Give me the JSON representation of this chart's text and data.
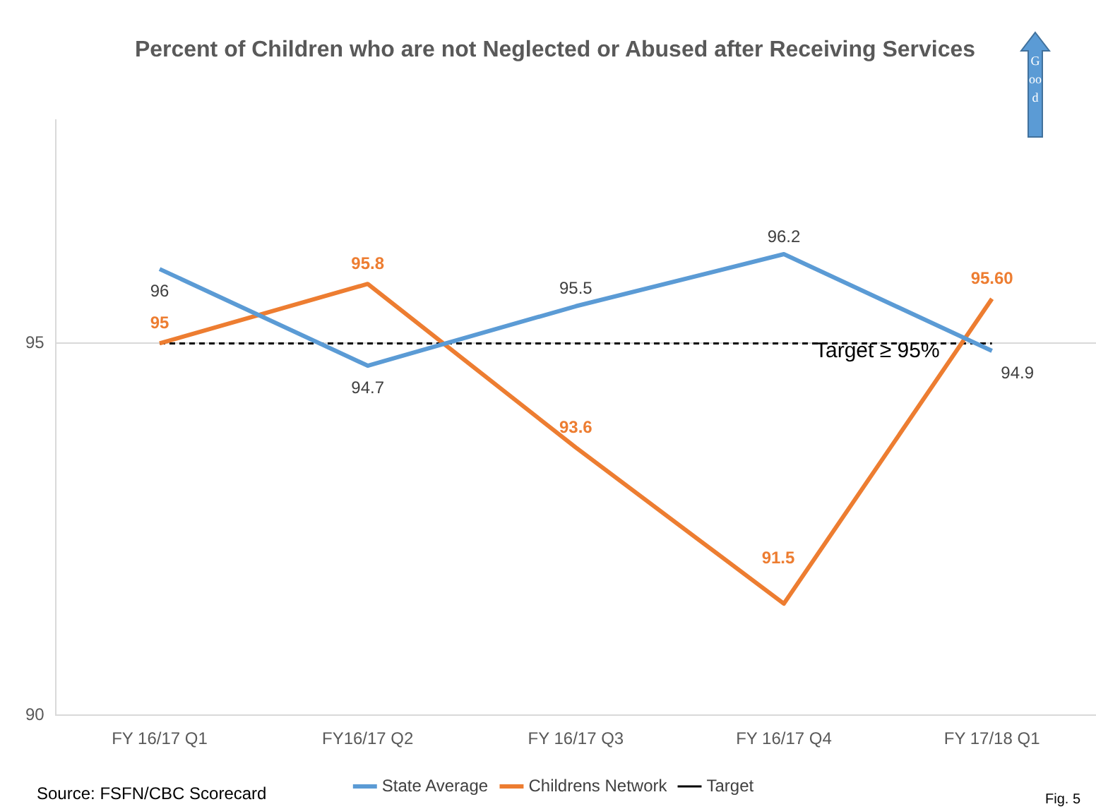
{
  "chart_data": {
    "type": "line",
    "title": "Percent of Children who are not Neglected or Abused after Receiving Services",
    "categories": [
      "FY 16/17 Q1",
      "FY16/17 Q2",
      "FY 16/17 Q3",
      "FY 16/17 Q4",
      "FY 17/18 Q1"
    ],
    "series": [
      {
        "name": "State Average",
        "color": "#5b9bd5",
        "values": [
          96,
          94.7,
          95.5,
          96.2,
          94.9
        ],
        "value_labels": [
          "96",
          "94.7",
          "95.5",
          "96.2",
          "94.9"
        ]
      },
      {
        "name": "Childrens Network",
        "color": "#ed7d31",
        "values": [
          95,
          95.8,
          93.6,
          91.5,
          95.6
        ],
        "value_labels": [
          "95",
          "95.8",
          "93.6",
          "91.5",
          "95.60"
        ]
      }
    ],
    "ref_lines": [
      {
        "axis": "y",
        "value": 95,
        "label": "Target",
        "color": "#000000",
        "line_style": "dashed"
      }
    ],
    "ylim": [
      90,
      98
    ],
    "yticks": [
      90,
      95
    ],
    "grid": "y",
    "legend": "bottom",
    "marker": "none",
    "line_style": "solid",
    "annotations": [
      "Target  ≥ 95%",
      "Good",
      "Source: FSFN/CBC Scorecard",
      "Fig. 5"
    ]
  }
}
